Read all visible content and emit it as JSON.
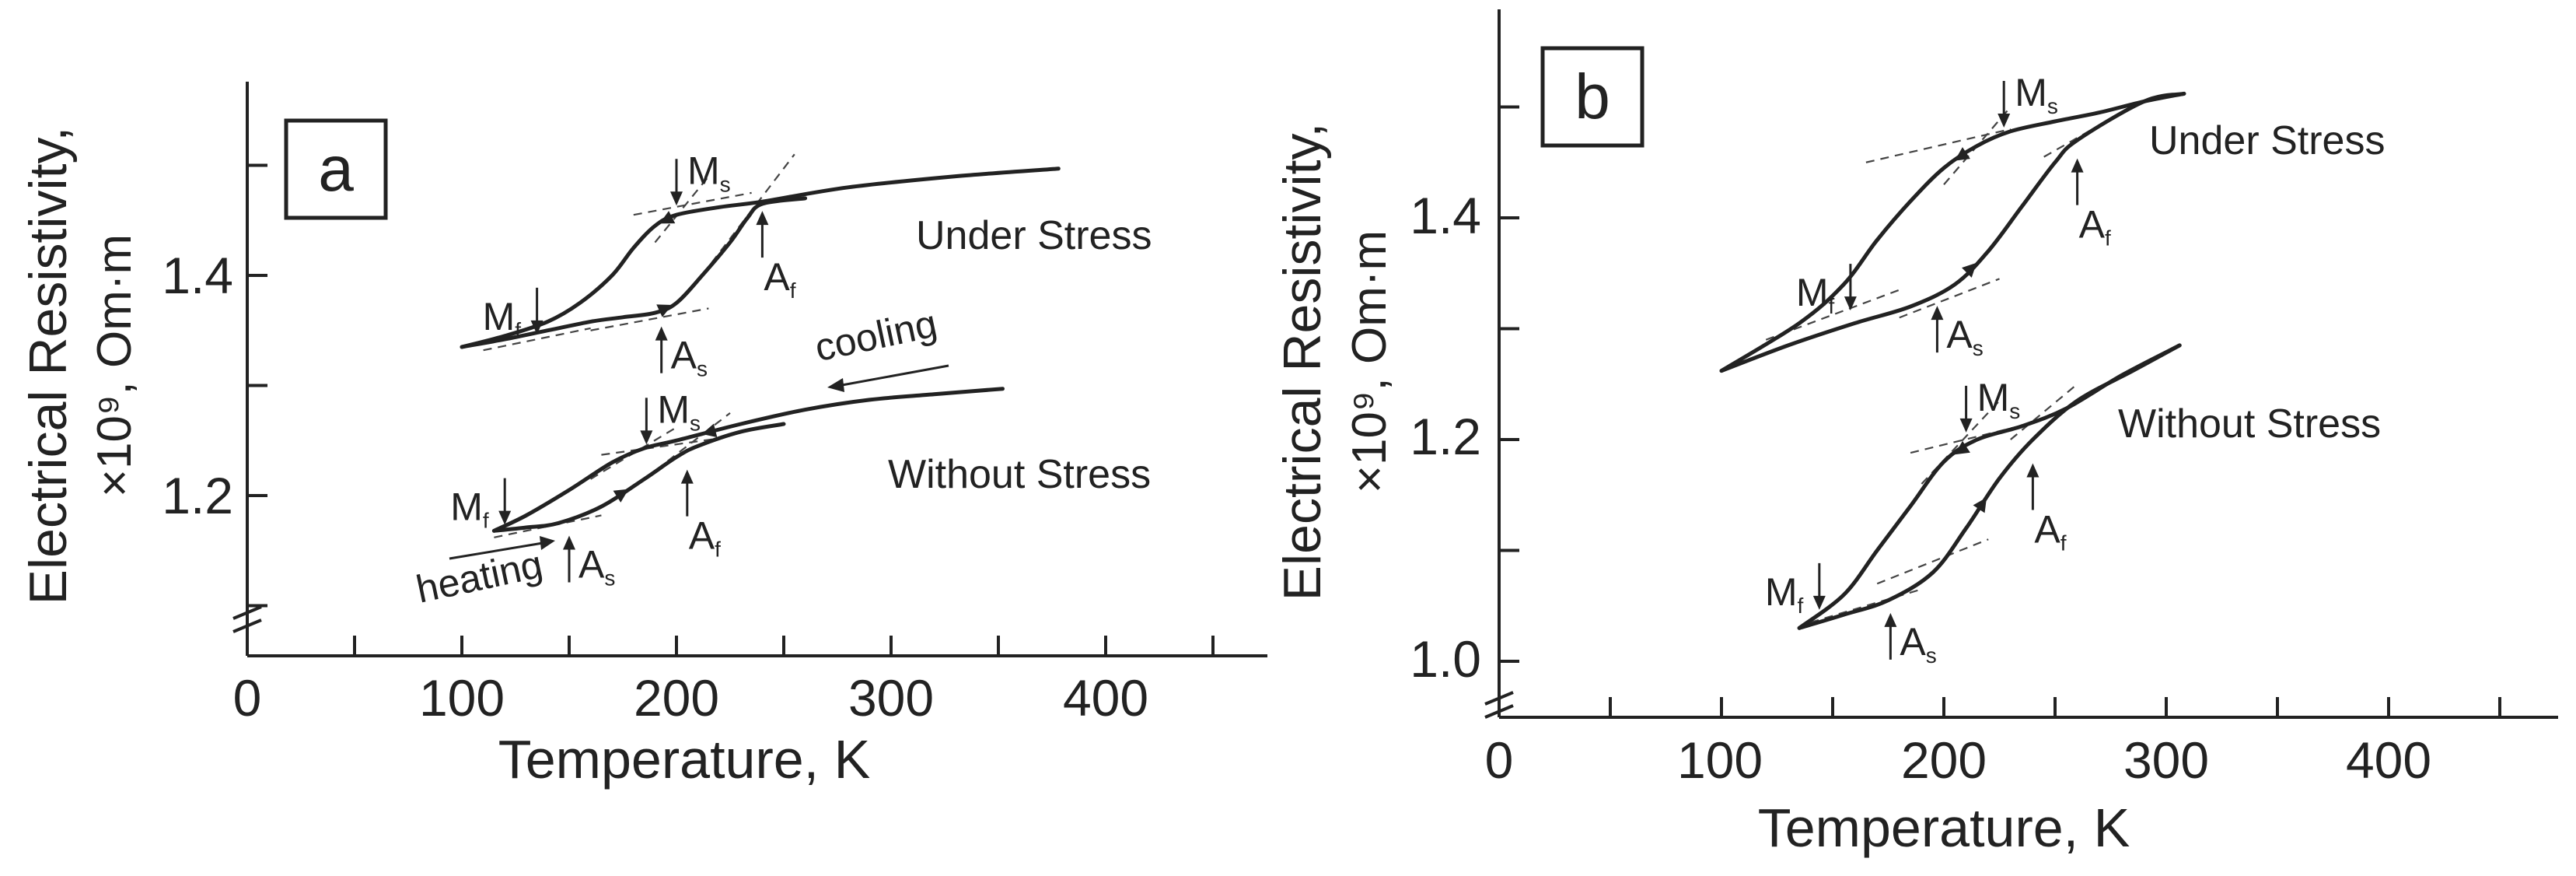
{
  "chart_data": [
    {
      "panel": "a",
      "type": "line",
      "xlabel": "Temperature, K",
      "ylabel_line1": "Electrical Resistivity,",
      "ylabel_line2": "×10⁹, Om·m",
      "xticks": [
        "0",
        "100",
        "200",
        "300",
        "400"
      ],
      "yticks": [
        "1.2",
        "1.4"
      ],
      "xlim": [
        0,
        475
      ],
      "ylim": [
        1.08,
        1.57
      ],
      "axis_break": true,
      "series": [
        {
          "name": "Under Stress",
          "cooling": [
            [
              378,
              1.497
            ],
            [
              330,
              1.49
            ],
            [
              280,
              1.48
            ],
            [
              240,
              1.467
            ],
            [
              220,
              1.462
            ],
            [
              200,
              1.455
            ],
            [
              190,
              1.445
            ],
            [
              180,
              1.425
            ],
            [
              170,
              1.4
            ],
            [
              155,
              1.375
            ],
            [
              140,
              1.358
            ],
            [
              120,
              1.345
            ],
            [
              100,
              1.335
            ]
          ],
          "heating": [
            [
              100,
              1.335
            ],
            [
              120,
              1.342
            ],
            [
              140,
              1.35
            ],
            [
              160,
              1.358
            ],
            [
              175,
              1.362
            ],
            [
              190,
              1.366
            ],
            [
              200,
              1.375
            ],
            [
              212,
              1.4
            ],
            [
              225,
              1.43
            ],
            [
              233,
              1.452
            ],
            [
              240,
              1.465
            ],
            [
              260,
              1.47
            ]
          ],
          "labels": [
            {
              "sym": "M",
              "sub": "s",
              "t": 200,
              "r": 1.462,
              "arrow": "down"
            },
            {
              "sym": "M",
              "sub": "f",
              "t": 135,
              "r": 1.345,
              "arrow": "down"
            },
            {
              "sym": "A",
              "sub": "s",
              "t": 193,
              "r": 1.355,
              "arrow": "up"
            },
            {
              "sym": "A",
              "sub": "f",
              "t": 240,
              "r": 1.46,
              "arrow": "up"
            }
          ],
          "tangents": [
            [
              [
                180,
                1.455
              ],
              [
                235,
                1.475
              ]
            ],
            [
              [
                190,
                1.43
              ],
              [
                215,
                1.49
              ]
            ],
            [
              [
                110,
                1.332
              ],
              [
                160,
                1.352
              ]
            ],
            [
              [
                160,
                1.35
              ],
              [
                215,
                1.37
              ]
            ],
            [
              [
                208,
                1.39
              ],
              [
                255,
                1.51
              ]
            ]
          ]
        },
        {
          "name": "Without Stress",
          "cooling": [
            [
              352,
              1.297
            ],
            [
              320,
              1.292
            ],
            [
              290,
              1.287
            ],
            [
              260,
              1.278
            ],
            [
              230,
              1.265
            ],
            [
              200,
              1.25
            ],
            [
              185,
              1.243
            ],
            [
              170,
              1.23
            ],
            [
              150,
              1.205
            ],
            [
              130,
              1.182
            ],
            [
              115,
              1.168
            ]
          ],
          "heating": [
            [
              115,
              1.168
            ],
            [
              130,
              1.171
            ],
            [
              145,
              1.175
            ],
            [
              165,
              1.19
            ],
            [
              185,
              1.215
            ],
            [
              200,
              1.235
            ],
            [
              210,
              1.245
            ],
            [
              230,
              1.258
            ],
            [
              250,
              1.265
            ]
          ],
          "labels": [
            {
              "sym": "M",
              "sub": "s",
              "t": 186,
              "r": 1.245,
              "arrow": "down"
            },
            {
              "sym": "M",
              "sub": "f",
              "t": 120,
              "r": 1.172,
              "arrow": "down"
            },
            {
              "sym": "A",
              "sub": "s",
              "t": 150,
              "r": 1.165,
              "arrow": "up"
            },
            {
              "sym": "A",
              "sub": "f",
              "t": 205,
              "r": 1.225,
              "arrow": "up"
            }
          ],
          "tangents": [
            [
              [
                165,
                1.237
              ],
              [
                220,
                1.252
              ]
            ],
            [
              [
                160,
                1.215
              ],
              [
                200,
                1.262
              ]
            ],
            [
              [
                115,
                1.162
              ],
              [
                165,
                1.182
              ]
            ],
            [
              [
                185,
                1.215
              ],
              [
                225,
                1.275
              ]
            ]
          ]
        }
      ],
      "annotations": {
        "cooling": "cooling",
        "heating": "heating"
      }
    },
    {
      "panel": "b",
      "type": "line",
      "xlabel": "Temperature, K",
      "ylabel_line1": "Electrical Resistivity,",
      "ylabel_line2": "×10⁹, Om·m",
      "xticks": [
        "0",
        "100",
        "200",
        "300",
        "400"
      ],
      "yticks": [
        "1.0",
        "1.2",
        "1.4"
      ],
      "xlim": [
        0,
        475
      ],
      "ylim": [
        0.95,
        1.59
      ],
      "axis_break": true,
      "series": [
        {
          "name": "Under Stress",
          "cooling": [
            [
              308,
              1.512
            ],
            [
              290,
              1.505
            ],
            [
              270,
              1.495
            ],
            [
              250,
              1.487
            ],
            [
              230,
              1.478
            ],
            [
              215,
              1.465
            ],
            [
              200,
              1.445
            ],
            [
              185,
              1.415
            ],
            [
              170,
              1.38
            ],
            [
              155,
              1.34
            ],
            [
              135,
              1.305
            ],
            [
              100,
              1.262
            ]
          ],
          "heating": [
            [
              100,
              1.262
            ],
            [
              130,
              1.285
            ],
            [
              160,
              1.305
            ],
            [
              185,
              1.32
            ],
            [
              205,
              1.34
            ],
            [
              220,
              1.37
            ],
            [
              235,
              1.41
            ],
            [
              250,
              1.45
            ],
            [
              260,
              1.47
            ],
            [
              290,
              1.505
            ],
            [
              308,
              1.512
            ]
          ],
          "labels": [
            {
              "sym": "M",
              "sub": "s",
              "t": 227,
              "r": 1.48,
              "arrow": "down"
            },
            {
              "sym": "M",
              "sub": "f",
              "t": 158,
              "r": 1.315,
              "arrow": "down"
            },
            {
              "sym": "A",
              "sub": "s",
              "t": 197,
              "r": 1.322,
              "arrow": "up"
            },
            {
              "sym": "A",
              "sub": "f",
              "t": 260,
              "r": 1.455,
              "arrow": "up"
            }
          ],
          "tangents": [
            [
              [
                165,
                1.45
              ],
              [
                230,
                1.48
              ]
            ],
            [
              [
                200,
                1.43
              ],
              [
                230,
                1.5
              ]
            ],
            [
              [
                120,
                1.29
              ],
              [
                180,
                1.335
              ]
            ],
            [
              [
                180,
                1.31
              ],
              [
                225,
                1.345
              ]
            ],
            [
              [
                245,
                1.455
              ],
              [
                280,
                1.495
              ]
            ]
          ]
        },
        {
          "name": "Without Stress",
          "cooling": [
            [
              306,
              1.285
            ],
            [
              280,
              1.258
            ],
            [
              255,
              1.228
            ],
            [
              235,
              1.212
            ],
            [
              215,
              1.2
            ],
            [
              200,
              1.18
            ],
            [
              185,
              1.14
            ],
            [
              170,
              1.1
            ],
            [
              155,
              1.06
            ],
            [
              135,
              1.03
            ]
          ],
          "heating": [
            [
              135,
              1.03
            ],
            [
              155,
              1.042
            ],
            [
              175,
              1.055
            ],
            [
              195,
              1.08
            ],
            [
              210,
              1.12
            ],
            [
              225,
              1.165
            ],
            [
              240,
              1.2
            ],
            [
              260,
              1.235
            ],
            [
              285,
              1.262
            ],
            [
              306,
              1.285
            ]
          ],
          "labels": [
            {
              "sym": "M",
              "sub": "s",
              "t": 210,
              "r": 1.205,
              "arrow": "down"
            },
            {
              "sym": "M",
              "sub": "f",
              "t": 144,
              "r": 1.045,
              "arrow": "down"
            },
            {
              "sym": "A",
              "sub": "s",
              "t": 176,
              "r": 1.045,
              "arrow": "up"
            },
            {
              "sym": "A",
              "sub": "f",
              "t": 240,
              "r": 1.18,
              "arrow": "up"
            }
          ],
          "tangents": [
            [
              [
                185,
                1.188
              ],
              [
                240,
                1.215
              ]
            ],
            [
              [
                190,
                1.16
              ],
              [
                225,
                1.235
              ]
            ],
            [
              [
                140,
                1.035
              ],
              [
                190,
                1.065
              ]
            ],
            [
              [
                170,
                1.07
              ],
              [
                220,
                1.11
              ]
            ],
            [
              [
                230,
                1.2
              ],
              [
                260,
                1.25
              ]
            ]
          ]
        }
      ]
    }
  ]
}
